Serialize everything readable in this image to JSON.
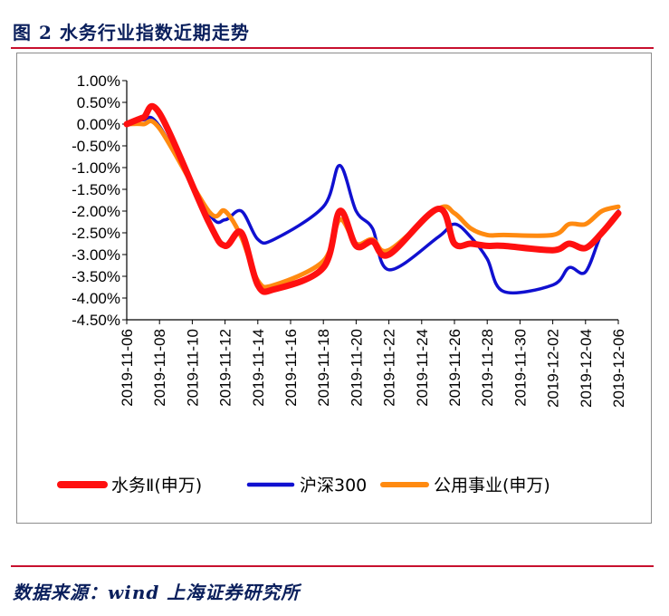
{
  "header": {
    "figure_title": "图 2 水务行业指数近期走势"
  },
  "footer": {
    "source": "数据来源：wind  上海证券研究所"
  },
  "chart_data": {
    "type": "line",
    "title": "",
    "xlabel": "",
    "ylabel": "",
    "ylim": [
      -4.5,
      1.0
    ],
    "y_ticks": [
      "1.00%",
      "0.50%",
      "0.00%",
      "-0.50%",
      "-1.00%",
      "-1.50%",
      "-2.00%",
      "-2.50%",
      "-3.00%",
      "-3.50%",
      "-4.00%",
      "-4.50%"
    ],
    "x_tick_labels": [
      "2019-11-06",
      "2019-11-08",
      "2019-11-10",
      "2019-11-12",
      "2019-11-14",
      "2019-11-16",
      "2019-11-18",
      "2019-11-20",
      "2019-11-22",
      "2019-11-24",
      "2019-11-26",
      "2019-11-28",
      "2019-11-30",
      "2019-12-02",
      "2019-12-04",
      "2019-12-06"
    ],
    "x_range": [
      "2019-11-06",
      "2019-12-06"
    ],
    "grid": false,
    "legend_position": "bottom",
    "series": [
      {
        "name": "水务Ⅱ(申万)",
        "color": "#ff1010",
        "dates": [
          "2019-11-06",
          "2019-11-07",
          "2019-11-08",
          "2019-11-11",
          "2019-11-12",
          "2019-11-13",
          "2019-11-14",
          "2019-11-15",
          "2019-11-18",
          "2019-11-19",
          "2019-11-20",
          "2019-11-21",
          "2019-11-22",
          "2019-11-25",
          "2019-11-26",
          "2019-11-27",
          "2019-11-28",
          "2019-11-29",
          "2019-12-02",
          "2019-12-03",
          "2019-12-04",
          "2019-12-05",
          "2019-12-06"
        ],
        "values": [
          0.0,
          0.15,
          0.25,
          -2.25,
          -2.8,
          -2.5,
          -3.7,
          -3.8,
          -3.3,
          -2.0,
          -2.8,
          -2.7,
          -3.0,
          -1.95,
          -2.75,
          -2.75,
          -2.8,
          -2.8,
          -2.9,
          -2.75,
          -2.85,
          -2.5,
          -2.05
        ]
      },
      {
        "name": "沪深300",
        "color": "#1010d0",
        "dates": [
          "2019-11-06",
          "2019-11-07",
          "2019-11-08",
          "2019-11-11",
          "2019-11-12",
          "2019-11-13",
          "2019-11-14",
          "2019-11-15",
          "2019-11-18",
          "2019-11-19",
          "2019-11-20",
          "2019-11-21",
          "2019-11-22",
          "2019-11-25",
          "2019-11-26",
          "2019-11-27",
          "2019-11-28",
          "2019-11-29",
          "2019-12-02",
          "2019-12-03",
          "2019-12-04",
          "2019-12-05",
          "2019-12-06"
        ],
        "values": [
          0.0,
          0.1,
          -0.05,
          -2.05,
          -2.2,
          -2.0,
          -2.65,
          -2.65,
          -1.9,
          -0.95,
          -2.0,
          -2.4,
          -3.35,
          -2.6,
          -2.3,
          -2.6,
          -3.1,
          -3.85,
          -3.7,
          -3.3,
          -3.4,
          -2.5,
          -2.0
        ]
      },
      {
        "name": "公用事业(申万)",
        "color": "#ff8a10",
        "dates": [
          "2019-11-06",
          "2019-11-07",
          "2019-11-08",
          "2019-11-11",
          "2019-11-12",
          "2019-11-13",
          "2019-11-14",
          "2019-11-15",
          "2019-11-18",
          "2019-11-19",
          "2019-11-20",
          "2019-11-21",
          "2019-11-22",
          "2019-11-25",
          "2019-11-26",
          "2019-11-27",
          "2019-11-28",
          "2019-11-29",
          "2019-12-02",
          "2019-12-03",
          "2019-12-04",
          "2019-12-05",
          "2019-12-06"
        ],
        "values": [
          0.0,
          0.0,
          -0.1,
          -2.0,
          -2.0,
          -2.6,
          -3.6,
          -3.7,
          -3.15,
          -2.2,
          -2.75,
          -2.65,
          -2.9,
          -1.95,
          -2.05,
          -2.4,
          -2.55,
          -2.55,
          -2.55,
          -2.3,
          -2.3,
          -2.0,
          -1.9
        ]
      }
    ]
  }
}
